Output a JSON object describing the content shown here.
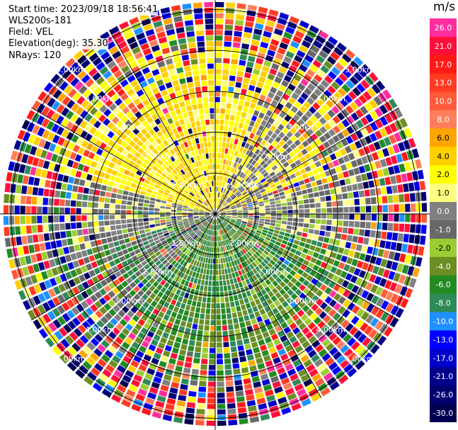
{
  "info": {
    "start_time": "Start time: 2023/09/18 18:56:41",
    "radar": "WLS200s-181",
    "field": "Field: VEL",
    "elevation": "Elevation(deg): 35.30",
    "nrays": "NRays: 120"
  },
  "chart_data": {
    "type": "heatmap",
    "projection": "polar-ppi",
    "field": "VEL",
    "units": "m/s",
    "nrays": 120,
    "elevation_deg": 35.3,
    "range_ring_labels": [
      "1.00km",
      "2.00km",
      "3.00km",
      "4.00km",
      "5.00km"
    ],
    "range_rings_km": [
      1,
      2,
      3,
      4,
      5
    ],
    "max_range_km": 5.2,
    "spokes": 12,
    "colorbar": {
      "unit": "m/s",
      "levels": [
        26.0,
        21.0,
        17.0,
        13.0,
        10.0,
        8.0,
        6.0,
        4.0,
        2.0,
        1.0,
        0.0,
        -1.0,
        -2.0,
        -4.0,
        -6.0,
        -8.0,
        -10.0,
        -13.0,
        -17.0,
        -21.0,
        -26.0,
        -30.0
      ],
      "tick_labels": [
        "26.0",
        "21.0",
        "17.0",
        "13.0",
        "10.0",
        "8.0",
        "6.0",
        "4.0",
        "2.0",
        "1.0",
        "0.0",
        "-1.0",
        "-2.0",
        "-4.0",
        "-6.0",
        "-8.0",
        "-10.0",
        "-13.0",
        "-17.0",
        "-21.0",
        "-26.0",
        "-30.0"
      ],
      "colors": [
        "#ff2e9f",
        "#ff0f3a",
        "#ff1a1a",
        "#ff3b22",
        "#ff5a3a",
        "#ff7f5a",
        "#ffa500",
        "#ffd000",
        "#ffff00",
        "#ffff80",
        "#808080",
        "#686868",
        "#9acd32",
        "#6b8e23",
        "#228b22",
        "#2e8b57",
        "#1e90ff",
        "#0000ff",
        "#0000cd",
        "#00008b",
        "#000070",
        "#000050"
      ]
    },
    "pattern": {
      "north_sector": "positive 2-6 m/s (yellow/orange), near-zero grey to the east",
      "south_sector": "negative -1 to -8 m/s (green), grey to the west",
      "outer_ranges": "noisy, all velocity bins"
    }
  }
}
